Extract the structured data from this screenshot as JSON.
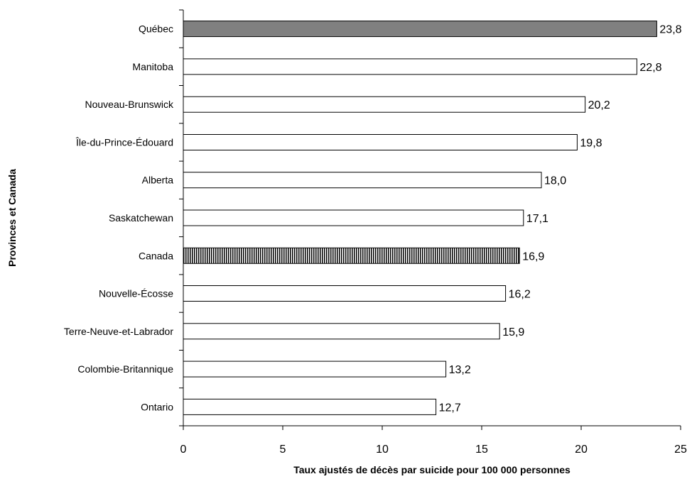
{
  "chart_data": {
    "type": "bar",
    "orientation": "horizontal",
    "categories": [
      "Québec",
      "Manitoba",
      "Nouveau-Brunswick",
      "Île-du-Prince-Édouard",
      "Alberta",
      "Saskatchewan",
      "Canada",
      "Nouvelle-Écosse",
      "Terre-Neuve-et-Labrador",
      "Colombie-Britannique",
      "Ontario"
    ],
    "values": [
      23.8,
      22.8,
      20.2,
      19.8,
      18.0,
      17.1,
      16.9,
      16.2,
      15.9,
      13.2,
      12.7
    ],
    "value_labels": [
      "23,8",
      "22,8",
      "20,2",
      "19,8",
      "18,0",
      "17,1",
      "16,9",
      "16,2",
      "15,9",
      "13,2",
      "12,7"
    ],
    "bar_styles": [
      "solid-gray",
      "white",
      "white",
      "white",
      "white",
      "white",
      "hatched",
      "white",
      "white",
      "white",
      "white"
    ],
    "xlabel": "Taux ajustés de décès par suicide pour 100 000 personnes",
    "ylabel": "Provinces et Canada",
    "xlim": [
      0,
      25
    ],
    "xticks": [
      0,
      5,
      10,
      15,
      20,
      25
    ],
    "grid": false,
    "legend": "none",
    "colors": {
      "highlight": "#808080",
      "default": "#ffffff",
      "stroke": "#000000"
    }
  }
}
